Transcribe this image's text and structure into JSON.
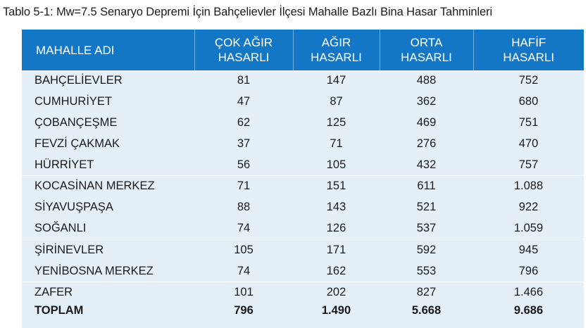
{
  "caption": "Tablo 5-1: Mw=7.5 Senaryo Depremi İçin Bahçelievler İlçesi Mahalle Bazlı Bina Hasar Tahminleri",
  "table": {
    "headers": [
      {
        "line1": "MAHALLE ADI",
        "line2": ""
      },
      {
        "line1": "ÇOK AĞIR",
        "line2": "HASARLI"
      },
      {
        "line1": "AĞIR",
        "line2": "HASARLI"
      },
      {
        "line1": "ORTA",
        "line2": "HASARLI"
      },
      {
        "line1": "HAFİF",
        "line2": "HASARLI"
      }
    ],
    "rows": [
      [
        "BAHÇELİEVLER",
        "81",
        "147",
        "488",
        "752"
      ],
      [
        "CUMHURİYET",
        "47",
        "87",
        "362",
        "680"
      ],
      [
        "ÇOBANÇEŞME",
        "62",
        "125",
        "469",
        "751"
      ],
      [
        "FEVZİ ÇAKMAK",
        "37",
        "71",
        "276",
        "470"
      ],
      [
        "HÜRRİYET",
        "56",
        "105",
        "432",
        "757"
      ],
      [
        "KOCASİNAN MERKEZ",
        "71",
        "151",
        "611",
        "1.088"
      ],
      [
        "SİYAVUŞPAŞA",
        "88",
        "143",
        "521",
        "922"
      ],
      [
        "SOĞANLI",
        "74",
        "126",
        "537",
        "1.059"
      ],
      [
        "ŞİRİNEVLER",
        "105",
        "171",
        "592",
        "945"
      ],
      [
        "YENİBOSNA MERKEZ",
        "74",
        "162",
        "553",
        "796"
      ],
      [
        "ZAFER",
        "101",
        "202",
        "827",
        "1.466"
      ]
    ],
    "total": [
      "TOPLAM",
      "796",
      "1.490",
      "5.668",
      "9.686"
    ]
  }
}
